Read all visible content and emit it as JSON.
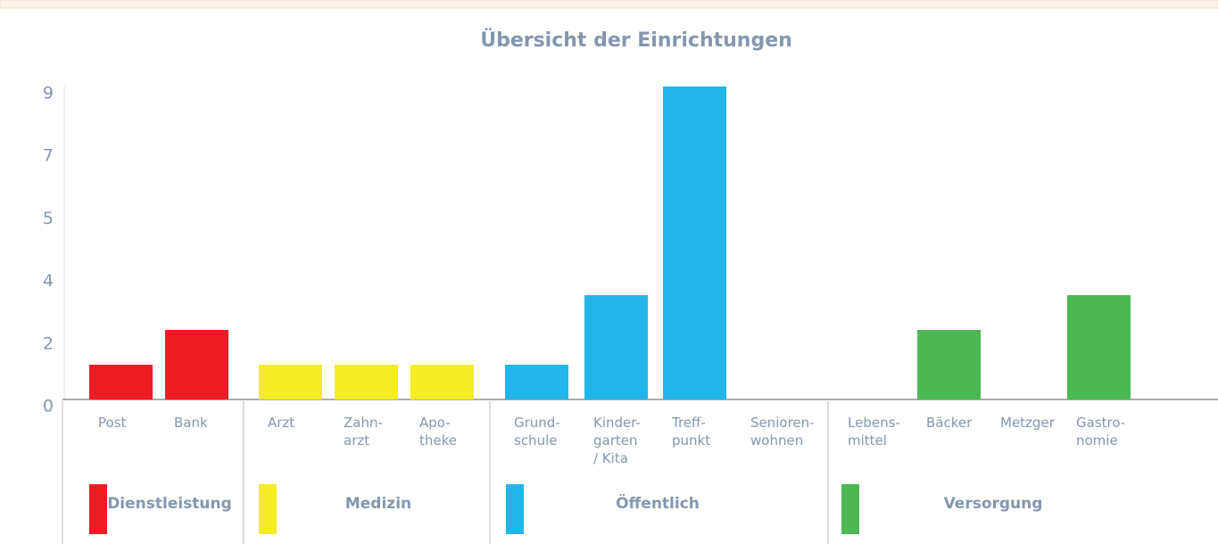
{
  "chart_data": {
    "type": "bar",
    "title": "Übersicht der Einrichtungen",
    "ylim": [
      0,
      9
    ],
    "yticks": [
      0,
      {
        "value": 1.8,
        "label": "2"
      },
      {
        "value": 3.6,
        "label": "4"
      },
      {
        "value": 5.4,
        "label": "5"
      },
      {
        "value": 7.2,
        "label": "7"
      },
      9
    ],
    "groups": [
      {
        "name": "Dienstleistung",
        "color": "#ed1c24",
        "categories": [
          [
            "Post"
          ],
          [
            "Bank"
          ]
        ],
        "values": [
          1,
          2
        ]
      },
      {
        "name": "Medizin",
        "color": "#f5ec23",
        "categories": [
          [
            "Arzt"
          ],
          [
            "Zahn-",
            "arzt"
          ],
          [
            "Apo-",
            "theke"
          ]
        ],
        "values": [
          1,
          1,
          1
        ]
      },
      {
        "name": "Öffentlich",
        "color": "#22b5ea",
        "categories": [
          [
            "Grund-",
            "schule"
          ],
          [
            "Kinder-",
            "garten",
            "/ Kita"
          ],
          [
            "Treff-",
            "punkt"
          ],
          [
            "Senioren-",
            "wohnen"
          ]
        ],
        "values": [
          1,
          3,
          9,
          0
        ]
      },
      {
        "name": "Versorgung",
        "color": "#4cb853",
        "categories": [
          [
            "Lebens-",
            "mittel"
          ],
          [
            "Bäcker"
          ],
          [
            "Metzger"
          ],
          [
            "Gastro-",
            "nomie"
          ]
        ],
        "values": [
          0,
          2,
          0,
          3
        ]
      }
    ]
  }
}
